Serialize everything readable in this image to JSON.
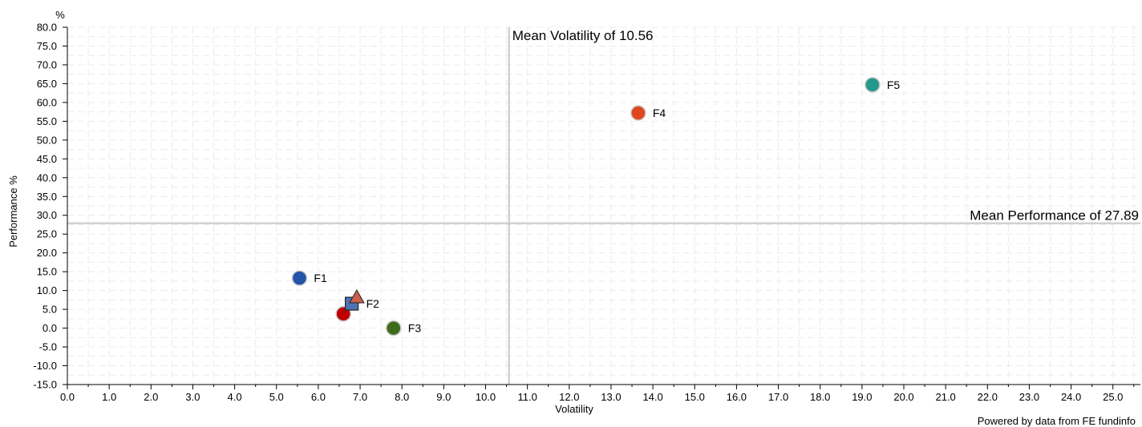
{
  "chart_data": {
    "type": "scatter",
    "xlabel": "Volatility",
    "ylabel": "Performance %",
    "y_unit": "%",
    "xlim": [
      0,
      25.8
    ],
    "ylim": [
      -15,
      80
    ],
    "x_ticks": [
      "0.0",
      "1.0",
      "2.0",
      "3.0",
      "4.0",
      "5.0",
      "6.0",
      "7.0",
      "8.0",
      "9.0",
      "10.0",
      "11.0",
      "12.0",
      "13.0",
      "14.0",
      "15.0",
      "16.0",
      "17.0",
      "18.0",
      "19.0",
      "20.0",
      "21.0",
      "22.0",
      "23.0",
      "24.0",
      "25.0"
    ],
    "y_ticks": [
      "80.0",
      "75.0",
      "70.0",
      "65.0",
      "60.0",
      "55.0",
      "50.0",
      "45.0",
      "40.0",
      "35.0",
      "30.0",
      "25.0",
      "20.0",
      "15.0",
      "10.0",
      "5.0",
      "0.0",
      "-5.0",
      "-10.0",
      "-15.0"
    ],
    "grid": true,
    "mean_lines": {
      "volatility": {
        "value": 10.56,
        "label": "Mean Volatility of 10.56"
      },
      "performance": {
        "value": 27.89,
        "label": "Mean Performance of 27.89"
      }
    },
    "points": [
      {
        "label": "F1",
        "x": 5.55,
        "y": 13.3,
        "shape": "circle",
        "color": "#2553A8"
      },
      {
        "label": "",
        "x": 6.6,
        "y": 3.8,
        "shape": "circle",
        "color": "#C00000"
      },
      {
        "label": "F2",
        "x": 6.8,
        "y": 6.5,
        "shape": "square",
        "color": "#4F73B5"
      },
      {
        "label": "",
        "x": 6.92,
        "y": 8.0,
        "shape": "triangle",
        "color": "#C9604A"
      },
      {
        "label": "F3",
        "x": 7.8,
        "y": 0.0,
        "shape": "circle",
        "color": "#3E6B1A"
      },
      {
        "label": "F4",
        "x": 13.65,
        "y": 57.2,
        "shape": "circle",
        "color": "#E0471E"
      },
      {
        "label": "F5",
        "x": 19.25,
        "y": 64.7,
        "shape": "circle",
        "color": "#22998A"
      }
    ]
  },
  "footer": {
    "credit": "Powered by data from FE fundinfo"
  }
}
